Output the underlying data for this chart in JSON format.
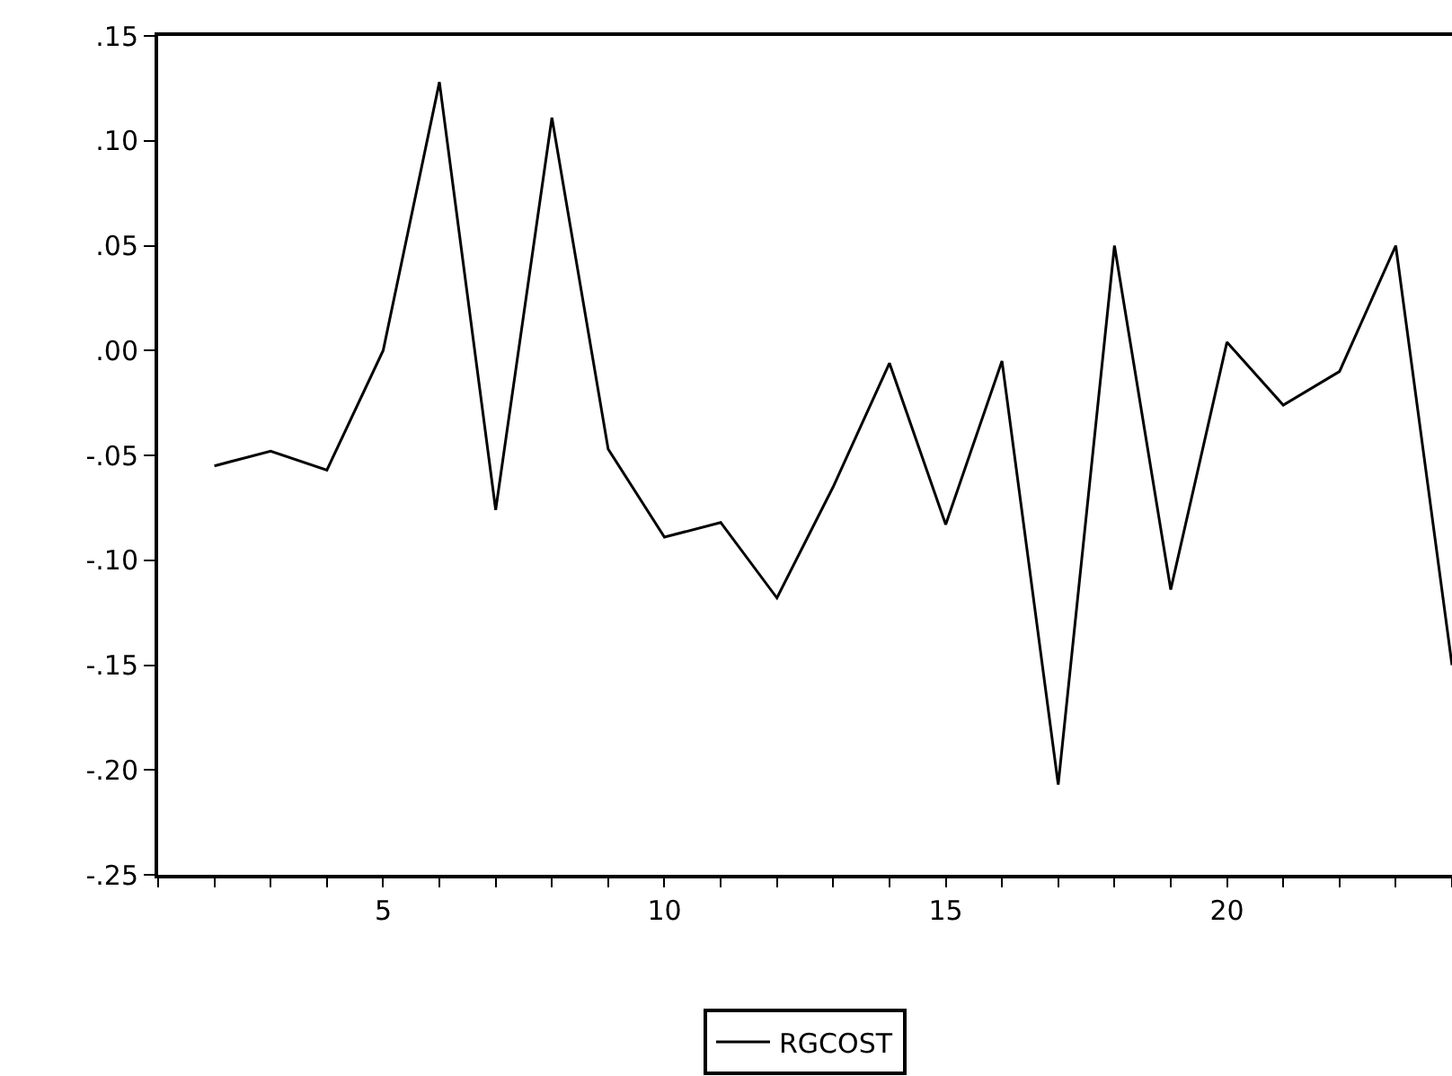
{
  "chart_data": {
    "type": "line",
    "x": [
      2,
      3,
      4,
      5,
      6,
      7,
      8,
      9,
      10,
      11,
      12,
      13,
      14,
      15,
      16,
      17,
      18,
      19,
      20,
      21,
      22,
      23,
      24
    ],
    "series": [
      {
        "name": "RGCOST",
        "color": "#000000",
        "values": [
          -0.055,
          -0.048,
          -0.057,
          0.0,
          0.128,
          -0.076,
          0.111,
          -0.047,
          -0.089,
          -0.082,
          -0.118,
          -0.065,
          -0.006,
          -0.083,
          -0.005,
          -0.207,
          0.05,
          -0.114,
          0.004,
          -0.026,
          -0.01,
          0.05,
          -0.15
        ]
      }
    ],
    "xlim": [
      1,
      24
    ],
    "xticks": [
      {
        "value": 1,
        "label": null
      },
      {
        "value": 2,
        "label": null
      },
      {
        "value": 3,
        "label": null
      },
      {
        "value": 4,
        "label": null
      },
      5,
      {
        "value": 6,
        "label": null
      },
      {
        "value": 7,
        "label": null
      },
      {
        "value": 8,
        "label": null
      },
      {
        "value": 9,
        "label": null
      },
      10,
      {
        "value": 11,
        "label": null
      },
      {
        "value": 12,
        "label": null
      },
      {
        "value": 13,
        "label": null
      },
      {
        "value": 14,
        "label": null
      },
      15,
      {
        "value": 16,
        "label": null
      },
      {
        "value": 17,
        "label": null
      },
      {
        "value": 18,
        "label": null
      },
      {
        "value": 19,
        "label": null
      },
      20,
      {
        "value": 21,
        "label": null
      },
      {
        "value": 22,
        "label": null
      },
      {
        "value": 23,
        "label": null
      },
      {
        "value": 24,
        "label": null
      }
    ],
    "ylim": [
      -0.25,
      0.15
    ],
    "yticks": [
      {
        "value": 0.15,
        "label": ".15"
      },
      {
        "value": 0.1,
        "label": ".10"
      },
      {
        "value": 0.05,
        "label": ".05"
      },
      {
        "value": 0,
        "label": ".00"
      },
      {
        "value": -0.05,
        "label": "-.05"
      },
      {
        "value": -0.1,
        "label": "-.10"
      },
      {
        "value": -0.15,
        "label": "-.15"
      },
      {
        "value": -0.2,
        "label": "-.20"
      },
      {
        "value": -0.25,
        "label": "-.25"
      }
    ],
    "legend": "bottom",
    "marker": "none",
    "line_style": "solid"
  }
}
